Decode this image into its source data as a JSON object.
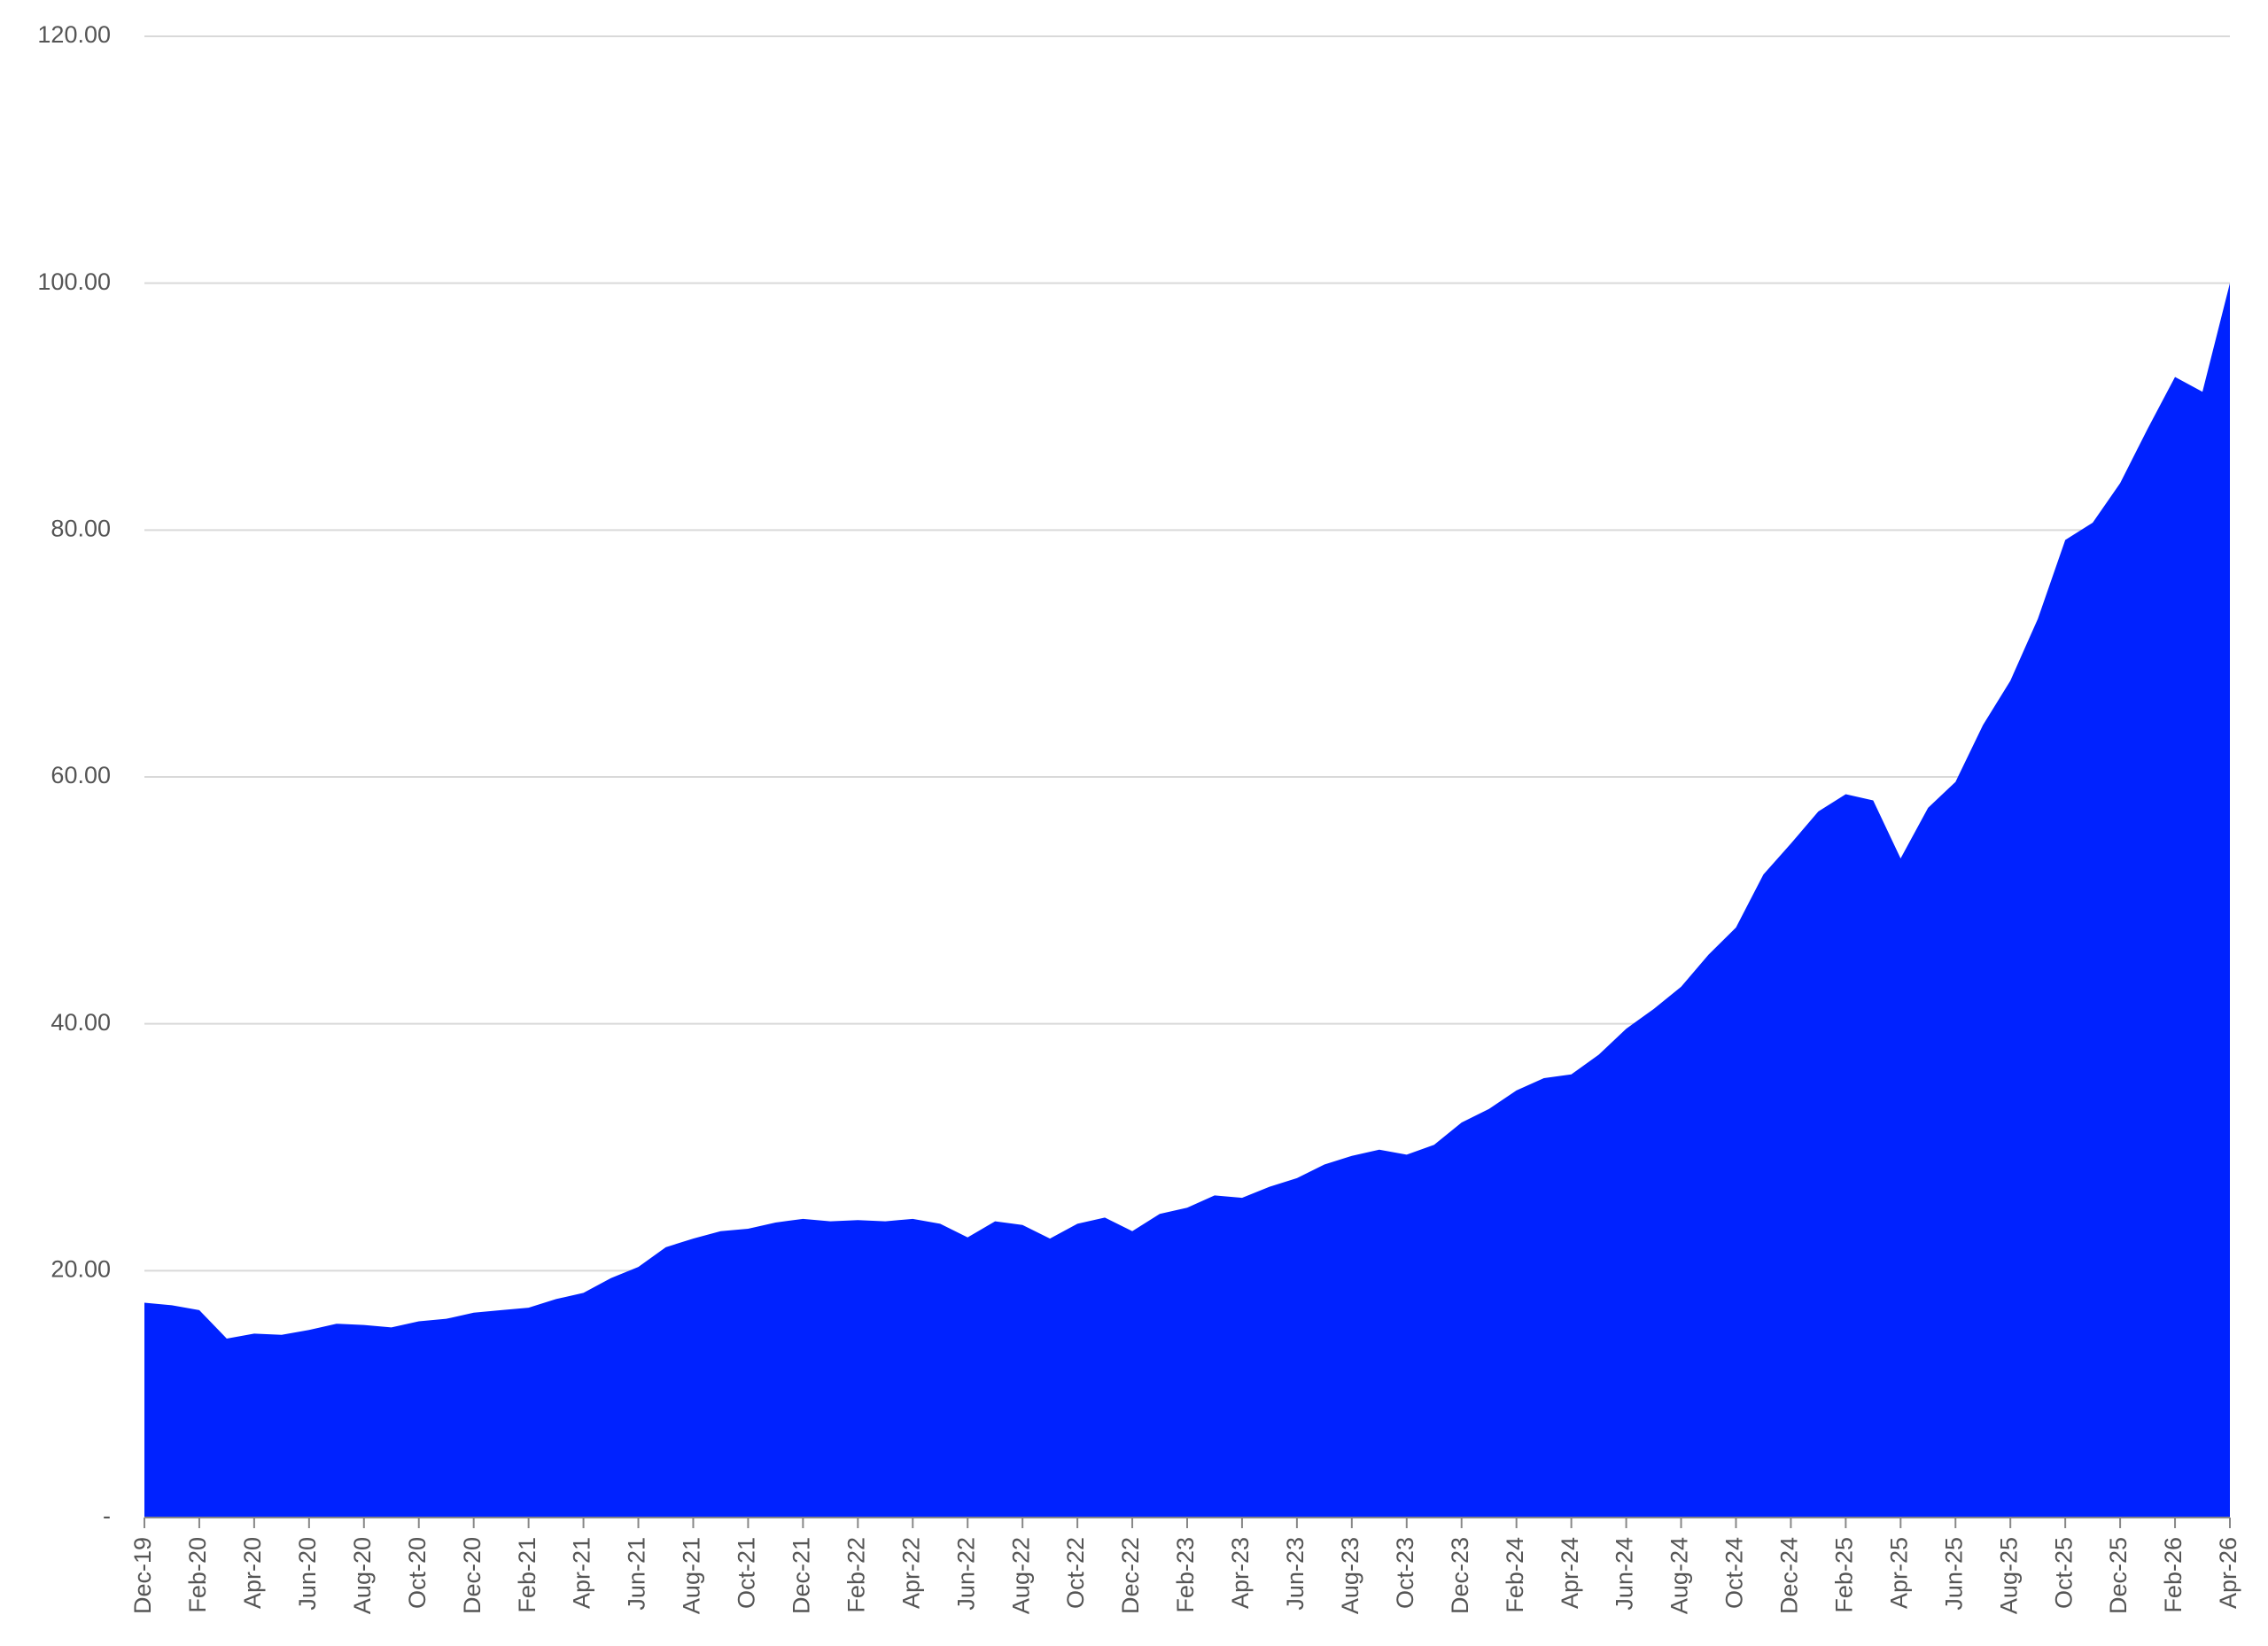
{
  "chart_data": {
    "type": "area",
    "color": "#0022ff",
    "grid": true,
    "categories": [
      "Dec-19",
      null,
      "Feb-20",
      null,
      "Apr-20",
      null,
      "Jun-20",
      null,
      "Aug-20",
      null,
      "Oct-20",
      null,
      "Dec-20",
      null,
      "Feb-21",
      null,
      "Apr-21",
      null,
      "Jun-21",
      null,
      "Aug-21",
      null,
      "Oct-21",
      null,
      "Dec-21",
      null,
      "Feb-22",
      null,
      "Apr-22",
      null,
      "Jun-22",
      null,
      "Aug-22",
      null,
      "Oct-22",
      null,
      "Dec-22",
      null,
      "Feb-23",
      null,
      "Apr-23",
      null,
      "Jun-23",
      null,
      "Aug-23",
      null,
      "Oct-23",
      null,
      "Dec-23",
      null,
      "Feb-24",
      null,
      "Apr-24",
      null,
      "Jun-24",
      null,
      "Aug-24",
      null,
      "Oct-24",
      null,
      "Dec-24",
      null,
      "Feb-25",
      null,
      "Apr-25",
      null,
      "Jun-25",
      null,
      "Aug-25",
      null,
      "Oct-25",
      null,
      "Dec-25",
      null,
      "Feb-26",
      null,
      "Apr-26"
    ],
    "values": [
      17.4,
      17.2,
      16.8,
      14.5,
      14.9,
      14.8,
      15.2,
      15.7,
      15.6,
      15.4,
      15.9,
      16.1,
      16.6,
      16.8,
      17.0,
      17.7,
      18.2,
      19.4,
      20.3,
      21.9,
      22.6,
      23.2,
      23.4,
      23.9,
      24.2,
      24.0,
      24.1,
      24.0,
      24.2,
      23.8,
      22.7,
      24.0,
      23.7,
      22.6,
      23.8,
      24.3,
      23.2,
      24.6,
      25.1,
      26.1,
      25.9,
      26.8,
      27.5,
      28.6,
      29.3,
      29.8,
      29.4,
      30.2,
      32.0,
      33.1,
      34.6,
      35.6,
      35.9,
      37.5,
      39.6,
      41.2,
      43.0,
      45.6,
      47.8,
      52.1,
      54.6,
      57.2,
      58.6,
      58.1,
      53.4,
      57.5,
      59.6,
      64.2,
      67.8,
      72.8,
      79.2,
      80.6,
      83.8,
      88.2,
      92.4,
      91.2,
      100.0
    ],
    "ylim": [
      0,
      120
    ],
    "yticks": [
      {
        "value": 0,
        "label": "-"
      },
      {
        "value": 20,
        "label": "20.00"
      },
      {
        "value": 40,
        "label": "40.00"
      },
      {
        "value": 60,
        "label": "60.00"
      },
      {
        "value": 80,
        "label": "80.00"
      },
      {
        "value": 100,
        "label": "100.00"
      },
      {
        "value": 120,
        "label": "120.00"
      }
    ]
  }
}
